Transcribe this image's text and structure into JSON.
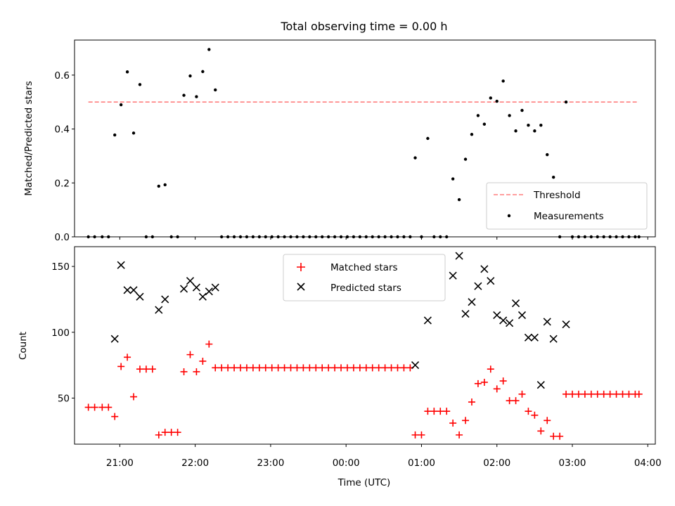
{
  "figure": {
    "title": "Total observing time = 0.00 h",
    "xlabel": "Time (UTC)"
  },
  "colors": {
    "threshold": "#ff7f7f",
    "measurements": "#000000",
    "matched": "#ff0000",
    "predicted": "#000000"
  },
  "chart_data": [
    {
      "type": "scatter",
      "ylabel": "Matched/Predicted stars",
      "xlim": [
        "20:24",
        "04:06"
      ],
      "ylim": [
        0,
        0.73
      ],
      "grid": false,
      "legend_placement": "lower-right",
      "y_ticks": [
        0.0,
        0.2,
        0.4,
        0.6
      ],
      "y_tick_labels": [
        "0.0",
        "0.2",
        "0.4",
        "0.6"
      ],
      "series": [
        {
          "name": "Threshold",
          "style": "dashed-line",
          "x": [
            "20:35",
            "03:53"
          ],
          "y": [
            0.5,
            0.5
          ]
        },
        {
          "name": "Measurements",
          "style": "dot",
          "points": [
            [
              "20:35",
              0.0
            ],
            [
              "20:40",
              0.0
            ],
            [
              "20:46",
              0.0
            ],
            [
              "20:51",
              0.0
            ],
            [
              "20:56",
              0.378
            ],
            [
              "21:01",
              0.49
            ],
            [
              "21:06",
              0.612
            ],
            [
              "21:11",
              0.385
            ],
            [
              "21:16",
              0.565
            ],
            [
              "21:21",
              0.0
            ],
            [
              "21:26",
              0.0
            ],
            [
              "21:31",
              0.188
            ],
            [
              "21:36",
              0.193
            ],
            [
              "21:41",
              0.0
            ],
            [
              "21:46",
              0.0
            ],
            [
              "21:51",
              0.525
            ],
            [
              "21:56",
              0.597
            ],
            [
              "22:01",
              0.52
            ],
            [
              "22:06",
              0.613
            ],
            [
              "22:11",
              0.695
            ],
            [
              "22:16",
              0.545
            ],
            [
              "22:21",
              0.0
            ],
            [
              "22:26",
              0.0
            ],
            [
              "22:31",
              0.0
            ],
            [
              "22:36",
              0.0
            ],
            [
              "22:41",
              0.0
            ],
            [
              "22:46",
              0.0
            ],
            [
              "22:51",
              0.0
            ],
            [
              "22:56",
              0.0
            ],
            [
              "23:01",
              0.0
            ],
            [
              "23:06",
              0.0
            ],
            [
              "23:11",
              0.0
            ],
            [
              "23:16",
              0.0
            ],
            [
              "23:21",
              0.0
            ],
            [
              "23:26",
              0.0
            ],
            [
              "23:31",
              0.0
            ],
            [
              "23:36",
              0.0
            ],
            [
              "23:41",
              0.0
            ],
            [
              "23:46",
              0.0
            ],
            [
              "23:51",
              0.0
            ],
            [
              "23:56",
              0.0
            ],
            [
              "00:01",
              0.0
            ],
            [
              "00:06",
              0.0
            ],
            [
              "00:11",
              0.0
            ],
            [
              "00:16",
              0.0
            ],
            [
              "00:21",
              0.0
            ],
            [
              "00:26",
              0.0
            ],
            [
              "00:31",
              0.0
            ],
            [
              "00:36",
              0.0
            ],
            [
              "00:41",
              0.0
            ],
            [
              "00:46",
              0.0
            ],
            [
              "00:51",
              0.0
            ],
            [
              "00:55",
              0.293
            ],
            [
              "01:00",
              0.0
            ],
            [
              "01:05",
              0.365
            ],
            [
              "01:10",
              0.0
            ],
            [
              "01:15",
              0.0
            ],
            [
              "01:20",
              0.0
            ],
            [
              "01:25",
              0.215
            ],
            [
              "01:30",
              0.138
            ],
            [
              "01:35",
              0.288
            ],
            [
              "01:40",
              0.38
            ],
            [
              "01:45",
              0.45
            ],
            [
              "01:50",
              0.418
            ],
            [
              "01:55",
              0.515
            ],
            [
              "02:00",
              0.503
            ],
            [
              "02:05",
              0.578
            ],
            [
              "02:10",
              0.45
            ],
            [
              "02:15",
              0.393
            ],
            [
              "02:20",
              0.469
            ],
            [
              "02:25",
              0.414
            ],
            [
              "02:30",
              0.393
            ],
            [
              "02:35",
              0.414
            ],
            [
              "02:40",
              0.305
            ],
            [
              "02:45",
              0.221
            ],
            [
              "02:50",
              0.0
            ],
            [
              "02:55",
              0.5
            ],
            [
              "03:00",
              0.0
            ],
            [
              "03:05",
              0.0
            ],
            [
              "03:10",
              0.0
            ],
            [
              "03:15",
              0.0
            ],
            [
              "03:20",
              0.0
            ],
            [
              "03:25",
              0.0
            ],
            [
              "03:30",
              0.0
            ],
            [
              "03:35",
              0.0
            ],
            [
              "03:40",
              0.0
            ],
            [
              "03:45",
              0.0
            ],
            [
              "03:50",
              0.0
            ],
            [
              "03:53",
              0.0
            ]
          ]
        }
      ]
    },
    {
      "type": "scatter",
      "ylabel": "Count",
      "xlim": [
        "20:24",
        "04:06"
      ],
      "ylim": [
        15,
        165
      ],
      "grid": false,
      "legend_placement": "upper-center",
      "x_ticks": [
        "21:00",
        "22:00",
        "23:00",
        "00:00",
        "01:00",
        "02:00",
        "03:00",
        "04:00"
      ],
      "y_ticks": [
        50,
        100,
        150
      ],
      "y_tick_labels": [
        "50",
        "100",
        "150"
      ],
      "series": [
        {
          "name": "Matched stars",
          "marker": "+",
          "points": [
            [
              "20:35",
              43
            ],
            [
              "20:40",
              43
            ],
            [
              "20:46",
              43
            ],
            [
              "20:51",
              43
            ],
            [
              "20:56",
              36
            ],
            [
              "21:01",
              74
            ],
            [
              "21:06",
              81
            ],
            [
              "21:11",
              51
            ],
            [
              "21:16",
              72
            ],
            [
              "21:21",
              72
            ],
            [
              "21:26",
              72
            ],
            [
              "21:31",
              22
            ],
            [
              "21:36",
              24
            ],
            [
              "21:41",
              24
            ],
            [
              "21:46",
              24
            ],
            [
              "21:51",
              70
            ],
            [
              "21:56",
              83
            ],
            [
              "22:01",
              70
            ],
            [
              "22:06",
              78
            ],
            [
              "22:11",
              91
            ],
            [
              "22:16",
              73
            ],
            [
              "22:21",
              73
            ],
            [
              "22:26",
              73
            ],
            [
              "22:31",
              73
            ],
            [
              "22:36",
              73
            ],
            [
              "22:41",
              73
            ],
            [
              "22:46",
              73
            ],
            [
              "22:51",
              73
            ],
            [
              "22:56",
              73
            ],
            [
              "23:01",
              73
            ],
            [
              "23:06",
              73
            ],
            [
              "23:11",
              73
            ],
            [
              "23:16",
              73
            ],
            [
              "23:21",
              73
            ],
            [
              "23:26",
              73
            ],
            [
              "23:31",
              73
            ],
            [
              "23:36",
              73
            ],
            [
              "23:41",
              73
            ],
            [
              "23:46",
              73
            ],
            [
              "23:51",
              73
            ],
            [
              "23:56",
              73
            ],
            [
              "00:01",
              73
            ],
            [
              "00:06",
              73
            ],
            [
              "00:11",
              73
            ],
            [
              "00:16",
              73
            ],
            [
              "00:21",
              73
            ],
            [
              "00:26",
              73
            ],
            [
              "00:31",
              73
            ],
            [
              "00:36",
              73
            ],
            [
              "00:41",
              73
            ],
            [
              "00:46",
              73
            ],
            [
              "00:51",
              73
            ],
            [
              "00:55",
              22
            ],
            [
              "01:00",
              22
            ],
            [
              "01:05",
              40
            ],
            [
              "01:10",
              40
            ],
            [
              "01:15",
              40
            ],
            [
              "01:20",
              40
            ],
            [
              "01:25",
              31
            ],
            [
              "01:30",
              22
            ],
            [
              "01:35",
              33
            ],
            [
              "01:40",
              47
            ],
            [
              "01:45",
              61
            ],
            [
              "01:50",
              62
            ],
            [
              "01:55",
              72
            ],
            [
              "02:00",
              57
            ],
            [
              "02:05",
              63
            ],
            [
              "02:10",
              48
            ],
            [
              "02:15",
              48
            ],
            [
              "02:20",
              53
            ],
            [
              "02:25",
              40
            ],
            [
              "02:30",
              37
            ],
            [
              "02:35",
              25
            ],
            [
              "02:40",
              33
            ],
            [
              "02:45",
              21
            ],
            [
              "02:50",
              21
            ],
            [
              "02:55",
              53
            ],
            [
              "03:00",
              53
            ],
            [
              "03:05",
              53
            ],
            [
              "03:10",
              53
            ],
            [
              "03:15",
              53
            ],
            [
              "03:20",
              53
            ],
            [
              "03:25",
              53
            ],
            [
              "03:30",
              53
            ],
            [
              "03:35",
              53
            ],
            [
              "03:40",
              53
            ],
            [
              "03:45",
              53
            ],
            [
              "03:50",
              53
            ],
            [
              "03:53",
              53
            ]
          ]
        },
        {
          "name": "Predicted stars",
          "marker": "x",
          "points": [
            [
              "20:56",
              95
            ],
            [
              "21:01",
              151
            ],
            [
              "21:06",
              132
            ],
            [
              "21:11",
              132
            ],
            [
              "21:16",
              127
            ],
            [
              "21:31",
              117
            ],
            [
              "21:36",
              125
            ],
            [
              "21:51",
              133
            ],
            [
              "21:56",
              139
            ],
            [
              "22:01",
              134
            ],
            [
              "22:06",
              127
            ],
            [
              "22:11",
              131
            ],
            [
              "22:16",
              134
            ],
            [
              "00:55",
              75
            ],
            [
              "01:05",
              109
            ],
            [
              "01:25",
              143
            ],
            [
              "01:30",
              158
            ],
            [
              "01:35",
              114
            ],
            [
              "01:40",
              123
            ],
            [
              "01:45",
              135
            ],
            [
              "01:50",
              148
            ],
            [
              "01:55",
              139
            ],
            [
              "02:00",
              113
            ],
            [
              "02:05",
              109
            ],
            [
              "02:10",
              107
            ],
            [
              "02:15",
              122
            ],
            [
              "02:20",
              113
            ],
            [
              "02:25",
              96
            ],
            [
              "02:30",
              96
            ],
            [
              "02:35",
              60
            ],
            [
              "02:40",
              108
            ],
            [
              "02:45",
              95
            ],
            [
              "02:55",
              106
            ]
          ]
        }
      ]
    }
  ]
}
